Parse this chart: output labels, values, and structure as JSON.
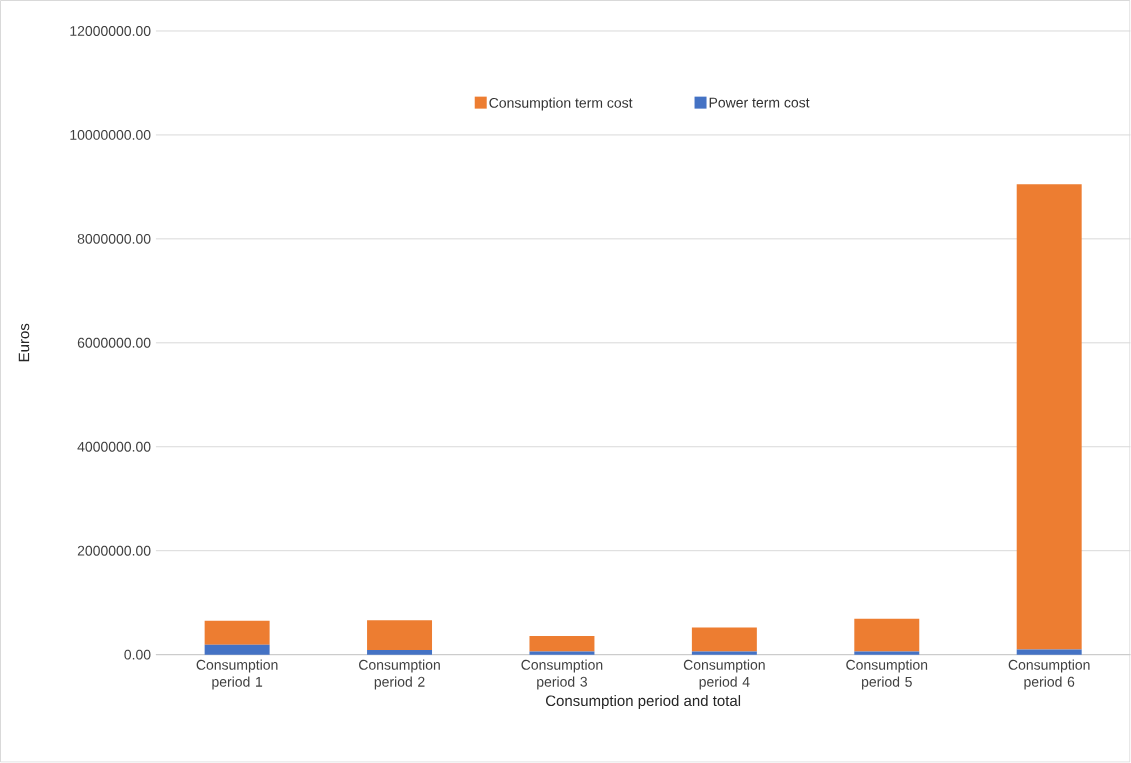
{
  "chart_data": {
    "type": "bar",
    "stacked": true,
    "xlabel": "Consumption period and total",
    "ylabel": "Euros",
    "categories": [
      "Consumption period 1",
      "Consumption period 2",
      "Consumption period 3",
      "Consumption period 4",
      "Consumption period 5",
      "Consumption period 6"
    ],
    "series": [
      {
        "name": "Power term cost",
        "color": "#4472c4",
        "values": [
          190000,
          90000,
          60000,
          60000,
          60000,
          100000
        ]
      },
      {
        "name": "Consumption term cost",
        "color": "#ed7d31",
        "values": [
          460000,
          570000,
          300000,
          460000,
          630000,
          8950000
        ]
      }
    ],
    "ylim": [
      0,
      12000000
    ],
    "yticks": [
      {
        "value": 0,
        "label": "0.00"
      },
      {
        "value": 2000000,
        "label": "2000000.00"
      },
      {
        "value": 4000000,
        "label": "4000000.00"
      },
      {
        "value": 6000000,
        "label": "6000000.00"
      },
      {
        "value": 8000000,
        "label": "8000000.00"
      },
      {
        "value": 10000000,
        "label": "10000000.00"
      },
      {
        "value": 12000000,
        "label": "12000000.00"
      }
    ],
    "grid": "y",
    "legend": "top"
  }
}
